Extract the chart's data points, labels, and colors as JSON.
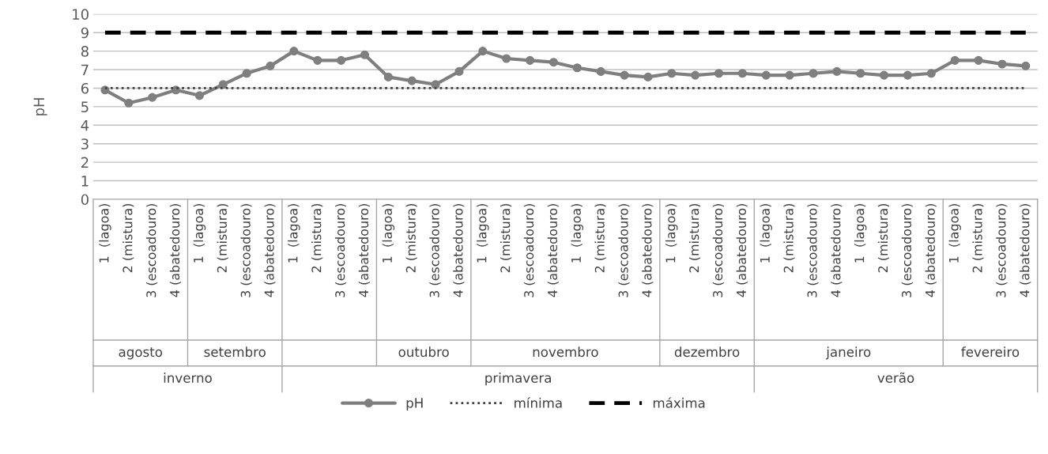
{
  "chart_data": {
    "type": "line",
    "ylabel": "pH",
    "ylim": [
      0,
      10
    ],
    "yticks": [
      0,
      1,
      2,
      3,
      4,
      5,
      6,
      7,
      8,
      9,
      10
    ],
    "grid": "y",
    "legend": "bottom",
    "categories": [
      "1  (lagoa)",
      "2 (mistura)",
      "3 (escoadouro)",
      "4 (abatedouro)",
      "1  (lagoa)",
      "2 (mistura)",
      "3 (escoadouro)",
      "4 (abatedouro)",
      "1  (lagoa)",
      "2 (mistura)",
      "3 (escoadouro)",
      "4 (abatedouro)",
      "1  (lagoa)",
      "2 (mistura)",
      "3 (escoadouro)",
      "4 (abatedouro)",
      "1  (lagoa)",
      "2 (mistura)",
      "3 (escoadouro)",
      "4 (abatedouro)",
      "1  (lagoa)",
      "2 (mistura)",
      "3 (escoadouro)",
      "4 (abatedouro)",
      "1  (lagoa)",
      "2 (mistura)",
      "3 (escoadouro)",
      "4 (abatedouro)",
      "1  (lagoa)",
      "2 (mistura)",
      "3 (escoadouro)",
      "4 (abatedouro)",
      "1  (lagoa)",
      "2 (mistura)",
      "3 (escoadouro)",
      "4 (abatedouro)",
      "1  (lagoa)",
      "2 (mistura)",
      "3 (escoadouro)",
      "4 (abatedouro)"
    ],
    "series": [
      {
        "name": "pH",
        "color": "#7f7f7f",
        "marker": "circle",
        "line_style": "solid",
        "values": [
          5.9,
          5.2,
          5.5,
          5.9,
          5.6,
          6.2,
          6.8,
          7.2,
          8.0,
          7.5,
          7.5,
          7.8,
          6.6,
          6.4,
          6.2,
          6.9,
          8.0,
          7.6,
          7.5,
          7.4,
          7.1,
          6.9,
          6.7,
          6.6,
          6.8,
          6.7,
          6.8,
          6.8,
          6.7,
          6.7,
          6.8,
          6.9,
          6.8,
          6.7,
          6.7,
          6.8,
          7.5,
          7.5,
          7.3,
          7.2
        ]
      },
      {
        "name": "mínima",
        "color": "#404040",
        "marker": "none",
        "line_style": "dotted",
        "values": [
          6,
          6,
          6,
          6,
          6,
          6,
          6,
          6,
          6,
          6,
          6,
          6,
          6,
          6,
          6,
          6,
          6,
          6,
          6,
          6,
          6,
          6,
          6,
          6,
          6,
          6,
          6,
          6,
          6,
          6,
          6,
          6,
          6,
          6,
          6,
          6,
          6,
          6,
          6,
          6
        ]
      },
      {
        "name": "máxima",
        "color": "#000000",
        "marker": "none",
        "line_style": "dashed",
        "values": [
          9,
          9,
          9,
          9,
          9,
          9,
          9,
          9,
          9,
          9,
          9,
          9,
          9,
          9,
          9,
          9,
          9,
          9,
          9,
          9,
          9,
          9,
          9,
          9,
          9,
          9,
          9,
          9,
          9,
          9,
          9,
          9,
          9,
          9,
          9,
          9,
          9,
          9,
          9,
          9
        ]
      }
    ],
    "annotations": [
      "agosto",
      "setembro",
      "outubro",
      "novembro",
      "dezembro",
      "janeiro",
      "fevereiro",
      "inverno",
      "primavera",
      "verão"
    ]
  }
}
